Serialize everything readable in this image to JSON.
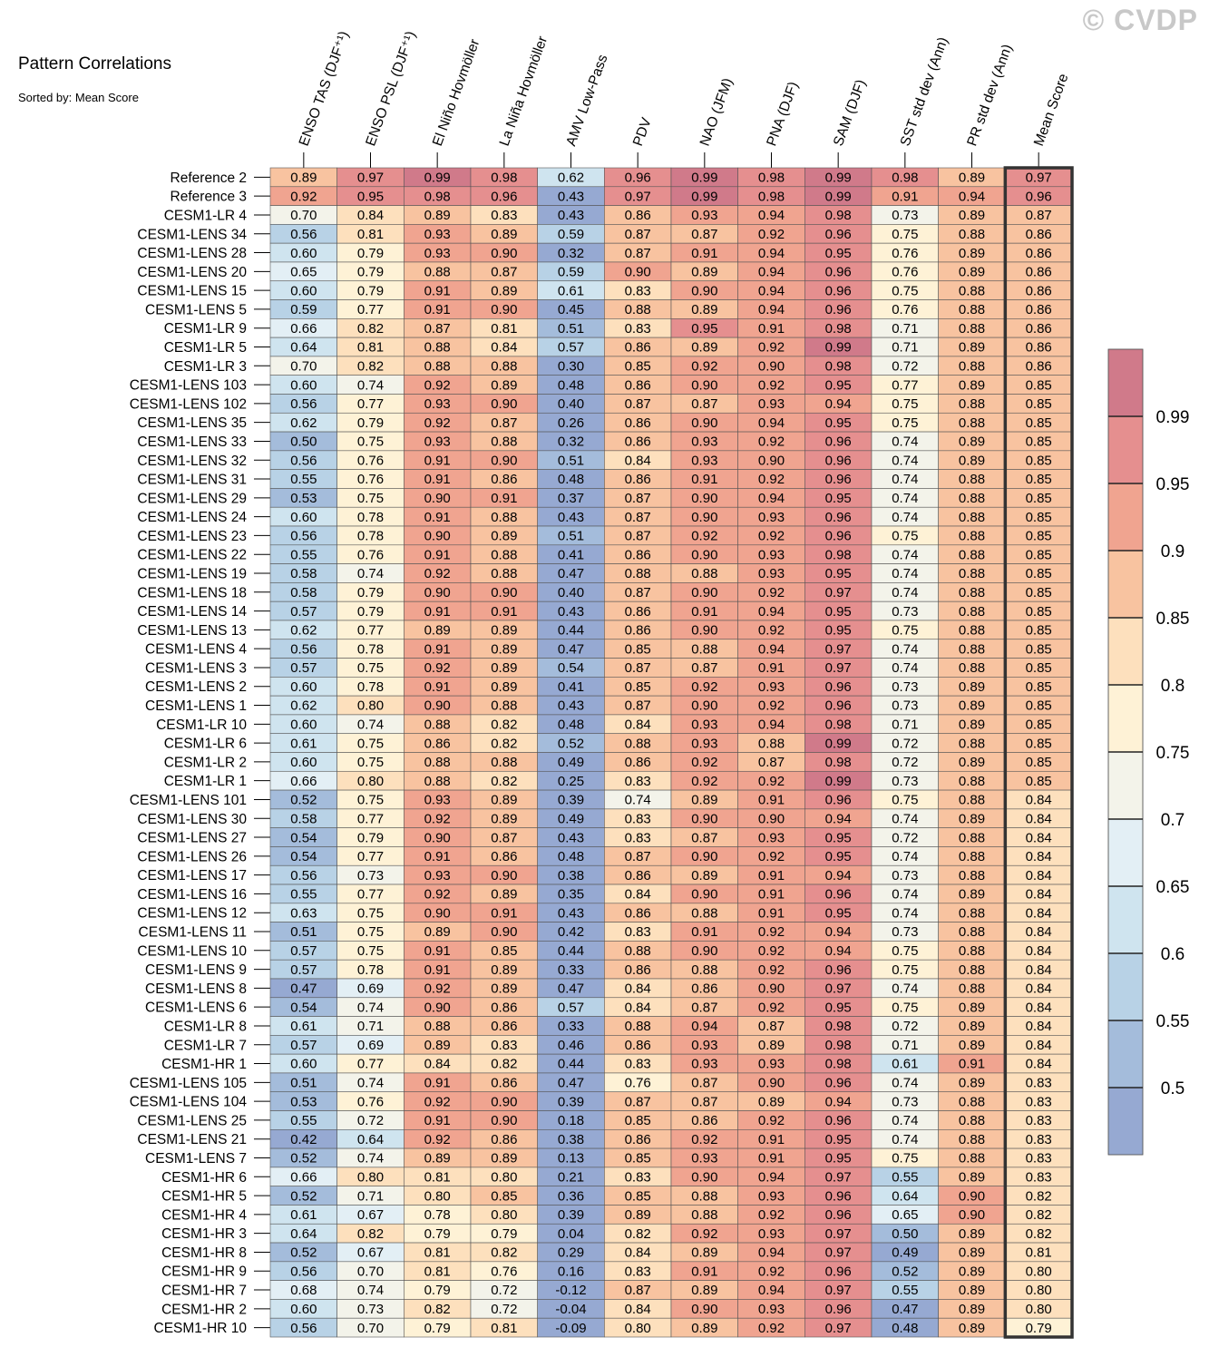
{
  "watermark": "© CVDP",
  "chart_data": {
    "type": "heatmap",
    "title": "Pattern Correlations",
    "subtitle": "Sorted by: Mean Score",
    "columns": [
      "ENSO TAS (DJF⁺¹)",
      "ENSO PSL (DJF⁺¹)",
      "El Niño Hovmöller",
      "La Niña Hovmöller",
      "AMV Low-Pass",
      "PDV",
      "NAO (JFM)",
      "PNA (DJF)",
      "SAM (DJF)",
      "SST std dev (Ann)",
      "PR std dev (Ann)",
      "Mean Score"
    ],
    "rows": [
      "Reference 2",
      "Reference 3",
      "CESM1-LR 4",
      "CESM1-LENS 34",
      "CESM1-LENS 28",
      "CESM1-LENS 20",
      "CESM1-LENS 15",
      "CESM1-LENS 5",
      "CESM1-LR 9",
      "CESM1-LR 5",
      "CESM1-LR 3",
      "CESM1-LENS 103",
      "CESM1-LENS 102",
      "CESM1-LENS 35",
      "CESM1-LENS 33",
      "CESM1-LENS 32",
      "CESM1-LENS 31",
      "CESM1-LENS 29",
      "CESM1-LENS 24",
      "CESM1-LENS 23",
      "CESM1-LENS 22",
      "CESM1-LENS 19",
      "CESM1-LENS 18",
      "CESM1-LENS 14",
      "CESM1-LENS 13",
      "CESM1-LENS 4",
      "CESM1-LENS 3",
      "CESM1-LENS 2",
      "CESM1-LENS 1",
      "CESM1-LR 10",
      "CESM1-LR 6",
      "CESM1-LR 2",
      "CESM1-LR 1",
      "CESM1-LENS 101",
      "CESM1-LENS 30",
      "CESM1-LENS 27",
      "CESM1-LENS 26",
      "CESM1-LENS 17",
      "CESM1-LENS 16",
      "CESM1-LENS 12",
      "CESM1-LENS 11",
      "CESM1-LENS 10",
      "CESM1-LENS 9",
      "CESM1-LENS 8",
      "CESM1-LENS 6",
      "CESM1-LR 8",
      "CESM1-LR 7",
      "CESM1-HR 1",
      "CESM1-LENS 105",
      "CESM1-LENS 104",
      "CESM1-LENS 25",
      "CESM1-LENS 21",
      "CESM1-LENS 7",
      "CESM1-HR 6",
      "CESM1-HR 5",
      "CESM1-HR 4",
      "CESM1-HR 3",
      "CESM1-HR 8",
      "CESM1-HR 9",
      "CESM1-HR 7",
      "CESM1-HR 2",
      "CESM1-HR 10"
    ],
    "values": [
      [
        "0.89",
        "0.97",
        "0.99",
        "0.98",
        "0.62",
        "0.96",
        "0.99",
        "0.98",
        "0.99",
        "0.98",
        "0.89",
        "0.97"
      ],
      [
        "0.92",
        "0.95",
        "0.98",
        "0.96",
        "0.43",
        "0.97",
        "0.99",
        "0.98",
        "0.99",
        "0.91",
        "0.94",
        "0.96"
      ],
      [
        "0.70",
        "0.84",
        "0.89",
        "0.83",
        "0.43",
        "0.86",
        "0.93",
        "0.94",
        "0.98",
        "0.73",
        "0.89",
        "0.87"
      ],
      [
        "0.56",
        "0.81",
        "0.93",
        "0.89",
        "0.59",
        "0.87",
        "0.87",
        "0.92",
        "0.96",
        "0.75",
        "0.88",
        "0.86"
      ],
      [
        "0.60",
        "0.79",
        "0.93",
        "0.90",
        "0.32",
        "0.87",
        "0.91",
        "0.94",
        "0.95",
        "0.76",
        "0.89",
        "0.86"
      ],
      [
        "0.65",
        "0.79",
        "0.88",
        "0.87",
        "0.59",
        "0.90",
        "0.89",
        "0.94",
        "0.96",
        "0.76",
        "0.89",
        "0.86"
      ],
      [
        "0.60",
        "0.79",
        "0.91",
        "0.89",
        "0.61",
        "0.83",
        "0.90",
        "0.94",
        "0.96",
        "0.75",
        "0.88",
        "0.86"
      ],
      [
        "0.59",
        "0.77",
        "0.91",
        "0.90",
        "0.45",
        "0.88",
        "0.89",
        "0.94",
        "0.96",
        "0.76",
        "0.88",
        "0.86"
      ],
      [
        "0.66",
        "0.82",
        "0.87",
        "0.81",
        "0.51",
        "0.83",
        "0.95",
        "0.91",
        "0.98",
        "0.71",
        "0.88",
        "0.86"
      ],
      [
        "0.64",
        "0.81",
        "0.88",
        "0.84",
        "0.57",
        "0.86",
        "0.89",
        "0.92",
        "0.99",
        "0.71",
        "0.89",
        "0.86"
      ],
      [
        "0.70",
        "0.82",
        "0.88",
        "0.88",
        "0.30",
        "0.85",
        "0.92",
        "0.90",
        "0.98",
        "0.72",
        "0.88",
        "0.86"
      ],
      [
        "0.60",
        "0.74",
        "0.92",
        "0.89",
        "0.48",
        "0.86",
        "0.90",
        "0.92",
        "0.95",
        "0.77",
        "0.89",
        "0.85"
      ],
      [
        "0.56",
        "0.77",
        "0.93",
        "0.90",
        "0.40",
        "0.87",
        "0.87",
        "0.93",
        "0.94",
        "0.75",
        "0.88",
        "0.85"
      ],
      [
        "0.62",
        "0.79",
        "0.92",
        "0.87",
        "0.26",
        "0.86",
        "0.90",
        "0.94",
        "0.95",
        "0.75",
        "0.88",
        "0.85"
      ],
      [
        "0.50",
        "0.75",
        "0.93",
        "0.88",
        "0.32",
        "0.86",
        "0.93",
        "0.92",
        "0.96",
        "0.74",
        "0.89",
        "0.85"
      ],
      [
        "0.56",
        "0.76",
        "0.91",
        "0.90",
        "0.51",
        "0.84",
        "0.93",
        "0.90",
        "0.96",
        "0.74",
        "0.89",
        "0.85"
      ],
      [
        "0.55",
        "0.76",
        "0.91",
        "0.86",
        "0.48",
        "0.86",
        "0.91",
        "0.92",
        "0.96",
        "0.74",
        "0.88",
        "0.85"
      ],
      [
        "0.53",
        "0.75",
        "0.90",
        "0.91",
        "0.37",
        "0.87",
        "0.90",
        "0.94",
        "0.95",
        "0.74",
        "0.88",
        "0.85"
      ],
      [
        "0.60",
        "0.78",
        "0.91",
        "0.88",
        "0.43",
        "0.87",
        "0.90",
        "0.93",
        "0.96",
        "0.74",
        "0.88",
        "0.85"
      ],
      [
        "0.56",
        "0.78",
        "0.90",
        "0.89",
        "0.51",
        "0.87",
        "0.92",
        "0.92",
        "0.96",
        "0.75",
        "0.88",
        "0.85"
      ],
      [
        "0.55",
        "0.76",
        "0.91",
        "0.88",
        "0.41",
        "0.86",
        "0.90",
        "0.93",
        "0.98",
        "0.74",
        "0.88",
        "0.85"
      ],
      [
        "0.58",
        "0.74",
        "0.92",
        "0.88",
        "0.47",
        "0.88",
        "0.88",
        "0.93",
        "0.95",
        "0.74",
        "0.88",
        "0.85"
      ],
      [
        "0.58",
        "0.79",
        "0.90",
        "0.90",
        "0.40",
        "0.87",
        "0.90",
        "0.92",
        "0.97",
        "0.74",
        "0.88",
        "0.85"
      ],
      [
        "0.57",
        "0.79",
        "0.91",
        "0.91",
        "0.43",
        "0.86",
        "0.91",
        "0.94",
        "0.95",
        "0.73",
        "0.88",
        "0.85"
      ],
      [
        "0.62",
        "0.77",
        "0.89",
        "0.89",
        "0.44",
        "0.86",
        "0.90",
        "0.92",
        "0.95",
        "0.75",
        "0.88",
        "0.85"
      ],
      [
        "0.56",
        "0.78",
        "0.91",
        "0.89",
        "0.47",
        "0.85",
        "0.88",
        "0.94",
        "0.97",
        "0.74",
        "0.88",
        "0.85"
      ],
      [
        "0.57",
        "0.75",
        "0.92",
        "0.89",
        "0.54",
        "0.87",
        "0.87",
        "0.91",
        "0.97",
        "0.74",
        "0.88",
        "0.85"
      ],
      [
        "0.60",
        "0.78",
        "0.91",
        "0.89",
        "0.41",
        "0.85",
        "0.92",
        "0.93",
        "0.96",
        "0.73",
        "0.89",
        "0.85"
      ],
      [
        "0.62",
        "0.80",
        "0.90",
        "0.88",
        "0.43",
        "0.87",
        "0.90",
        "0.92",
        "0.96",
        "0.73",
        "0.89",
        "0.85"
      ],
      [
        "0.60",
        "0.74",
        "0.88",
        "0.82",
        "0.48",
        "0.84",
        "0.93",
        "0.94",
        "0.98",
        "0.71",
        "0.89",
        "0.85"
      ],
      [
        "0.61",
        "0.75",
        "0.86",
        "0.82",
        "0.52",
        "0.88",
        "0.93",
        "0.88",
        "0.99",
        "0.72",
        "0.88",
        "0.85"
      ],
      [
        "0.60",
        "0.75",
        "0.88",
        "0.88",
        "0.49",
        "0.86",
        "0.92",
        "0.87",
        "0.98",
        "0.72",
        "0.89",
        "0.85"
      ],
      [
        "0.66",
        "0.80",
        "0.88",
        "0.82",
        "0.25",
        "0.83",
        "0.92",
        "0.92",
        "0.99",
        "0.73",
        "0.88",
        "0.85"
      ],
      [
        "0.52",
        "0.75",
        "0.93",
        "0.89",
        "0.39",
        "0.74",
        "0.89",
        "0.91",
        "0.96",
        "0.75",
        "0.88",
        "0.84"
      ],
      [
        "0.58",
        "0.77",
        "0.92",
        "0.89",
        "0.49",
        "0.83",
        "0.90",
        "0.90",
        "0.94",
        "0.74",
        "0.89",
        "0.84"
      ],
      [
        "0.54",
        "0.79",
        "0.90",
        "0.87",
        "0.43",
        "0.83",
        "0.87",
        "0.93",
        "0.95",
        "0.72",
        "0.88",
        "0.84"
      ],
      [
        "0.54",
        "0.77",
        "0.91",
        "0.86",
        "0.48",
        "0.87",
        "0.90",
        "0.92",
        "0.95",
        "0.74",
        "0.88",
        "0.84"
      ],
      [
        "0.56",
        "0.73",
        "0.93",
        "0.90",
        "0.38",
        "0.86",
        "0.89",
        "0.91",
        "0.94",
        "0.73",
        "0.88",
        "0.84"
      ],
      [
        "0.55",
        "0.77",
        "0.92",
        "0.89",
        "0.35",
        "0.84",
        "0.90",
        "0.91",
        "0.96",
        "0.74",
        "0.89",
        "0.84"
      ],
      [
        "0.63",
        "0.75",
        "0.90",
        "0.91",
        "0.43",
        "0.86",
        "0.88",
        "0.91",
        "0.95",
        "0.74",
        "0.88",
        "0.84"
      ],
      [
        "0.51",
        "0.75",
        "0.89",
        "0.90",
        "0.42",
        "0.83",
        "0.91",
        "0.92",
        "0.94",
        "0.73",
        "0.88",
        "0.84"
      ],
      [
        "0.57",
        "0.75",
        "0.91",
        "0.85",
        "0.44",
        "0.88",
        "0.90",
        "0.92",
        "0.94",
        "0.75",
        "0.88",
        "0.84"
      ],
      [
        "0.57",
        "0.78",
        "0.91",
        "0.89",
        "0.33",
        "0.86",
        "0.88",
        "0.92",
        "0.96",
        "0.75",
        "0.88",
        "0.84"
      ],
      [
        "0.47",
        "0.69",
        "0.92",
        "0.89",
        "0.47",
        "0.84",
        "0.86",
        "0.90",
        "0.97",
        "0.74",
        "0.88",
        "0.84"
      ],
      [
        "0.54",
        "0.74",
        "0.90",
        "0.86",
        "0.57",
        "0.84",
        "0.87",
        "0.92",
        "0.95",
        "0.75",
        "0.89",
        "0.84"
      ],
      [
        "0.61",
        "0.71",
        "0.88",
        "0.86",
        "0.33",
        "0.88",
        "0.94",
        "0.87",
        "0.98",
        "0.72",
        "0.89",
        "0.84"
      ],
      [
        "0.57",
        "0.69",
        "0.89",
        "0.83",
        "0.46",
        "0.86",
        "0.93",
        "0.89",
        "0.98",
        "0.71",
        "0.89",
        "0.84"
      ],
      [
        "0.60",
        "0.77",
        "0.84",
        "0.82",
        "0.44",
        "0.83",
        "0.93",
        "0.93",
        "0.98",
        "0.61",
        "0.91",
        "0.84"
      ],
      [
        "0.51",
        "0.74",
        "0.91",
        "0.86",
        "0.47",
        "0.76",
        "0.87",
        "0.90",
        "0.96",
        "0.74",
        "0.89",
        "0.83"
      ],
      [
        "0.53",
        "0.76",
        "0.92",
        "0.90",
        "0.39",
        "0.87",
        "0.87",
        "0.89",
        "0.94",
        "0.73",
        "0.88",
        "0.83"
      ],
      [
        "0.55",
        "0.72",
        "0.91",
        "0.90",
        "0.18",
        "0.85",
        "0.86",
        "0.92",
        "0.96",
        "0.74",
        "0.88",
        "0.83"
      ],
      [
        "0.42",
        "0.64",
        "0.92",
        "0.86",
        "0.38",
        "0.86",
        "0.92",
        "0.91",
        "0.95",
        "0.74",
        "0.88",
        "0.83"
      ],
      [
        "0.52",
        "0.74",
        "0.89",
        "0.89",
        "0.13",
        "0.85",
        "0.93",
        "0.91",
        "0.95",
        "0.75",
        "0.88",
        "0.83"
      ],
      [
        "0.66",
        "0.80",
        "0.81",
        "0.80",
        "0.21",
        "0.83",
        "0.90",
        "0.94",
        "0.97",
        "0.55",
        "0.89",
        "0.83"
      ],
      [
        "0.52",
        "0.71",
        "0.80",
        "0.85",
        "0.36",
        "0.85",
        "0.88",
        "0.93",
        "0.96",
        "0.64",
        "0.90",
        "0.82"
      ],
      [
        "0.61",
        "0.67",
        "0.78",
        "0.80",
        "0.39",
        "0.89",
        "0.88",
        "0.92",
        "0.96",
        "0.65",
        "0.90",
        "0.82"
      ],
      [
        "0.64",
        "0.82",
        "0.79",
        "0.79",
        "0.04",
        "0.82",
        "0.92",
        "0.93",
        "0.97",
        "0.50",
        "0.89",
        "0.82"
      ],
      [
        "0.52",
        "0.67",
        "0.81",
        "0.82",
        "0.29",
        "0.84",
        "0.89",
        "0.94",
        "0.97",
        "0.49",
        "0.89",
        "0.81"
      ],
      [
        "0.56",
        "0.70",
        "0.81",
        "0.76",
        "0.16",
        "0.83",
        "0.91",
        "0.92",
        "0.96",
        "0.52",
        "0.89",
        "0.80"
      ],
      [
        "0.68",
        "0.74",
        "0.79",
        "0.72",
        "-0.12",
        "0.87",
        "0.89",
        "0.94",
        "0.97",
        "0.55",
        "0.89",
        "0.80"
      ],
      [
        "0.60",
        "0.73",
        "0.82",
        "0.72",
        "-0.04",
        "0.84",
        "0.90",
        "0.93",
        "0.96",
        "0.47",
        "0.89",
        "0.80"
      ],
      [
        "0.56",
        "0.70",
        "0.79",
        "0.81",
        "-0.09",
        "0.80",
        "0.89",
        "0.92",
        "0.97",
        "0.48",
        "0.89",
        "0.79"
      ]
    ],
    "highlight_column": "Mean Score",
    "colorbar": {
      "ticks": [
        "0.99",
        "0.95",
        "0.9",
        "0.85",
        "0.8",
        "0.75",
        "0.7",
        "0.65",
        "0.6",
        "0.55",
        "0.5"
      ],
      "colors_high_to_low": [
        "#d07a8a",
        "#e58f8f",
        "#f0a490",
        "#f8c3a0",
        "#fde0bd",
        "#fef2d6",
        "#f3f3ea",
        "#e3eff5",
        "#cfe4ef",
        "#b8d2e6",
        "#a4bcdb",
        "#96a9d2"
      ]
    }
  }
}
